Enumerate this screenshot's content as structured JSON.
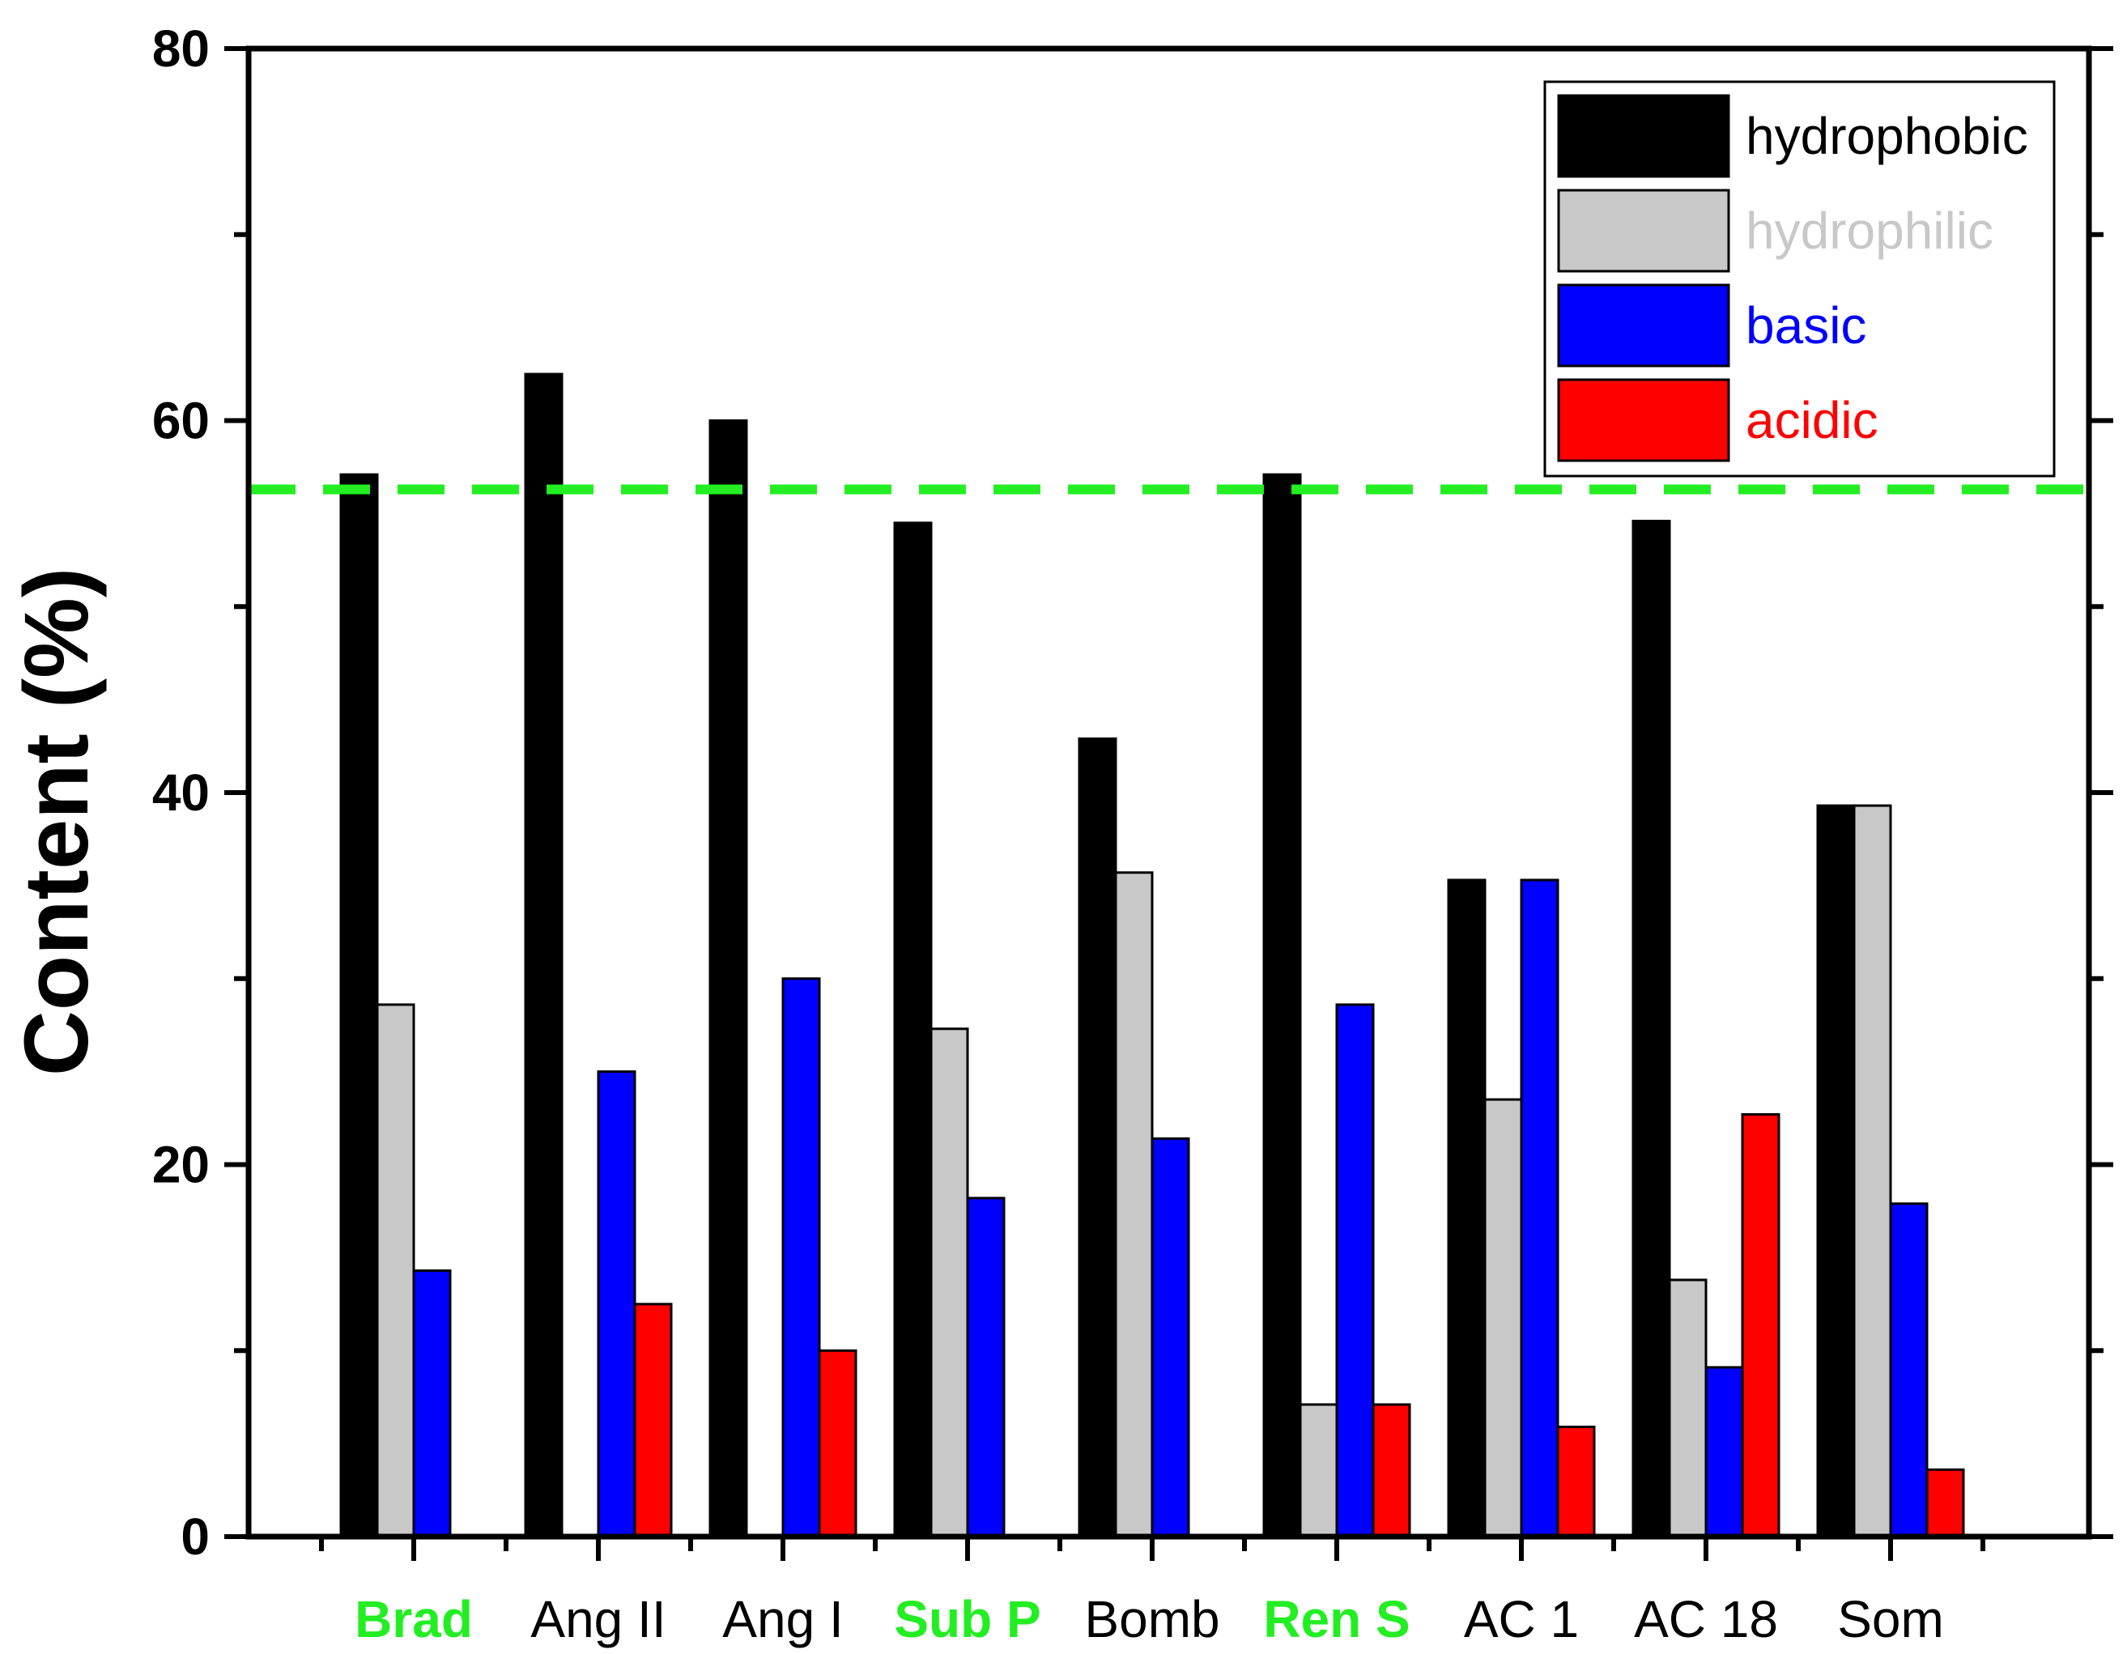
{
  "chart_data": {
    "type": "bar",
    "title": "",
    "xlabel": "",
    "ylabel": "Content (%)",
    "ylim": [
      0,
      80
    ],
    "yticks": [
      0,
      20,
      40,
      60,
      80
    ],
    "categories": [
      "Brad",
      "Ang II",
      "Ang I",
      "Sub P",
      "Bomb",
      "Ren S",
      "AC 1",
      "AC 18",
      "Som"
    ],
    "highlighted_categories": [
      "Brad",
      "Sub P",
      "Ren S"
    ],
    "highlight_color": "#22ee22",
    "series": [
      {
        "name": "hydrophobic",
        "color": "#000000",
        "label_color": "#000000",
        "values": [
          57.1,
          62.5,
          60.0,
          54.5,
          42.9,
          57.1,
          35.3,
          54.6,
          39.3
        ]
      },
      {
        "name": "hydrophilic",
        "color": "#c8c8c8",
        "label_color": "#c8c8c8",
        "values": [
          28.6,
          0,
          0,
          27.3,
          35.7,
          7.1,
          23.5,
          13.8,
          39.3
        ]
      },
      {
        "name": "basic",
        "color": "#0000ff",
        "label_color": "#0000ff",
        "values": [
          14.3,
          25.0,
          30.0,
          18.2,
          21.4,
          28.6,
          35.3,
          9.1,
          17.9
        ]
      },
      {
        "name": "acidic",
        "color": "#ff0000",
        "label_color": "#ff0000",
        "values": [
          0,
          12.5,
          10.0,
          0,
          0,
          7.1,
          5.9,
          22.7,
          3.6
        ]
      }
    ],
    "reference_line": {
      "value": 56.3,
      "color": "#22ee22",
      "style": "dashed"
    },
    "legend": {
      "position": "top-right"
    }
  }
}
